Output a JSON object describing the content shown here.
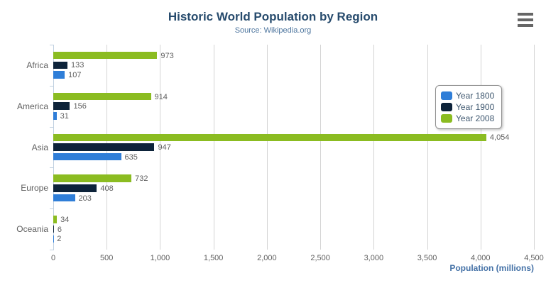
{
  "header": {
    "title": "Historic World Population by Region",
    "subtitle": "Source: Wikipedia.org"
  },
  "toolbar": {
    "context_menu_icon": "hamburger-menu-icon"
  },
  "chart_data": {
    "type": "bar",
    "orientation": "horizontal",
    "title": "Historic World Population by Region",
    "subtitle": "Source: Wikipedia.org",
    "categories": [
      "Africa",
      "America",
      "Asia",
      "Europe",
      "Oceania"
    ],
    "series": [
      {
        "name": "Year 1800",
        "color": "#2f7ed8",
        "values": [
          107,
          31,
          635,
          203,
          2
        ]
      },
      {
        "name": "Year 1900",
        "color": "#0d233a",
        "values": [
          133,
          156,
          947,
          408,
          6
        ]
      },
      {
        "name": "Year 2008",
        "color": "#8bbc21",
        "values": [
          973,
          914,
          4054,
          732,
          34
        ]
      }
    ],
    "xlabel": "Population (millions)",
    "ylabel": "",
    "xlim": [
      0,
      4500
    ],
    "x_ticks": [
      0,
      500,
      1000,
      1500,
      2000,
      2500,
      3000,
      3500,
      4000,
      4500
    ],
    "grid": true,
    "legend_position": "middle-right",
    "bar_order_top_to_bottom": [
      "Year 2008",
      "Year 1900",
      "Year 1800"
    ],
    "data_labels": true
  },
  "colors": {
    "title": "#274b6d",
    "subtitle": "#4d759e",
    "axis_line": "#c0d0e0",
    "gridline": "#d4d4d4",
    "tick_label": "#606060",
    "data_label": "#606060",
    "axis_title": "#4572a7",
    "legend_text": "#3e576f",
    "legend_border": "#909090",
    "menu_icon": "#666666"
  }
}
